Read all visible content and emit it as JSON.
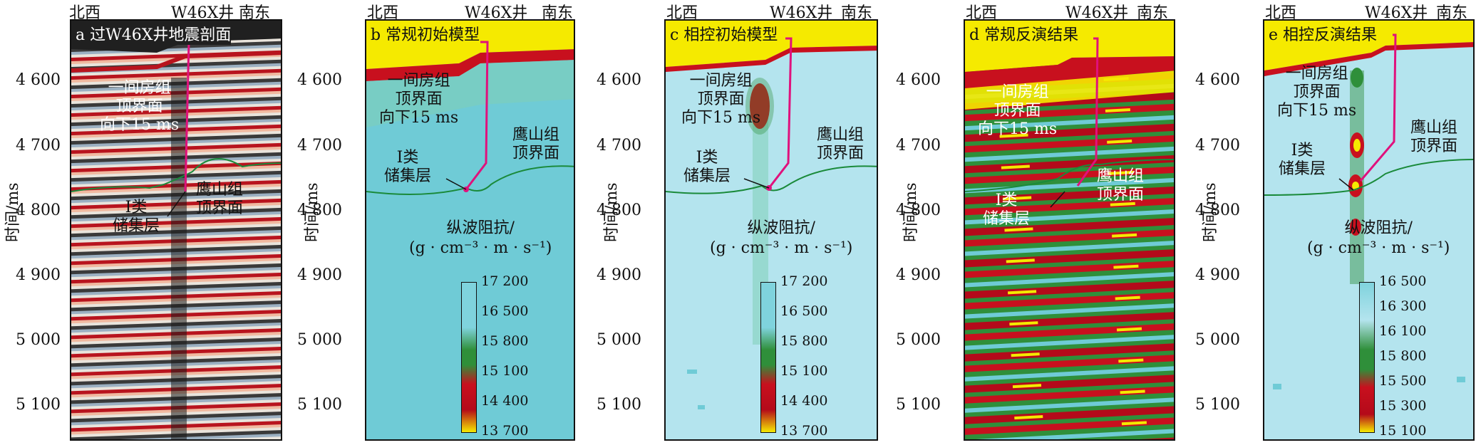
{
  "y_axis_label": "时间/ms",
  "y_ticks": [
    "4 600",
    "4 700",
    "4 800",
    "4 900",
    "5 000",
    "5 100"
  ],
  "top_labels": {
    "west": "北西",
    "well": "W46X井",
    "east": "南东"
  },
  "annotations": {
    "top_boundary": [
      "一间房组",
      "顶界面",
      "向下15 ms"
    ],
    "yingshan": [
      "鹰山组",
      "顶界面"
    ],
    "reservoir": [
      "Ⅰ类",
      "储集层"
    ]
  },
  "colorbar_title": [
    "纵波阻抗/",
    "(g · cm⁻³ · m · s⁻¹)"
  ],
  "colors": {
    "yellow": "#f5ea00",
    "red": "#c8101e",
    "green": "#2f8f3a",
    "cyan": "#6fcbd6",
    "light_cyan": "#b4e4ee",
    "magenta": "#e0117c",
    "horizon": "#1a8a3a"
  },
  "panels": [
    {
      "id": "a",
      "title": "a 过W46X井地震剖面",
      "type": "seismic"
    },
    {
      "id": "b",
      "title": "b 常规初始模型",
      "type": "model",
      "colorbar_ticks": [
        "17 200",
        "16 500",
        "15 800",
        "15 100",
        "14 400",
        "13 700"
      ]
    },
    {
      "id": "c",
      "title": "c 相控初始模型",
      "type": "model",
      "colorbar_ticks": [
        "17 200",
        "16 500",
        "15 800",
        "15 100",
        "14 400",
        "13 700"
      ]
    },
    {
      "id": "d",
      "title": "d 常规反演结果",
      "type": "inversion"
    },
    {
      "id": "e",
      "title": "e 相控反演结果",
      "type": "inversion",
      "colorbar_ticks": [
        "16 500",
        "16 300",
        "16 100",
        "15 800",
        "15 500",
        "15 300",
        "15 100"
      ]
    }
  ]
}
